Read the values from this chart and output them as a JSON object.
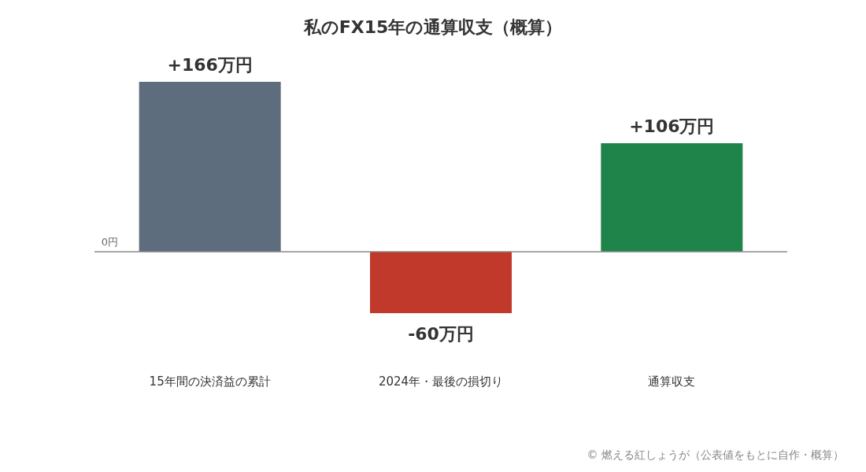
{
  "chart_data": {
    "type": "bar",
    "title": "私のFX15年の通算収支（概算）",
    "categories": [
      "15年間の決済益の累計",
      "2024年・最後の損切り",
      "通算収支"
    ],
    "values": [
      166,
      -60,
      106
    ],
    "colors": [
      "#5d6d7d",
      "#c0392b",
      "#1e8449"
    ],
    "value_labels": [
      "+166万円",
      "-60万円",
      "+106万円"
    ],
    "annotations": [
      "0円",
      "© 燃える紅しょうが（公表値をもとに自作・概算）"
    ]
  }
}
